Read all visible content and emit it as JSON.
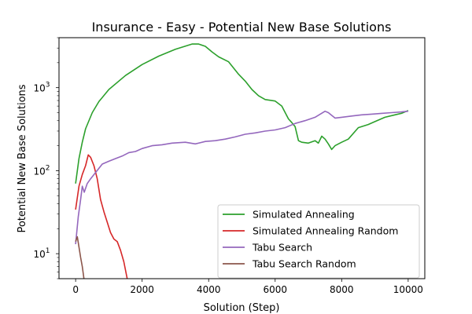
{
  "chart_data": {
    "type": "line",
    "title": "Insurance - Easy - Potential New Base Solutions",
    "xlabel": "Solution (Step)",
    "ylabel": "Potential New Base Solutions",
    "y_scale": "log",
    "xlim": [
      -500,
      10500
    ],
    "ylim": [
      5,
      4000
    ],
    "x_ticks": [
      0,
      2000,
      4000,
      6000,
      8000,
      10000
    ],
    "x_tick_labels": [
      "0",
      "2000",
      "4000",
      "6000",
      "8000",
      "10000"
    ],
    "y_ticks": [
      10,
      100,
      1000
    ],
    "y_tick_labels": [
      {
        "base": "10",
        "exp": "1"
      },
      {
        "base": "10",
        "exp": "2"
      },
      {
        "base": "10",
        "exp": "3"
      }
    ],
    "legend_position": "lower-right",
    "grid": false,
    "series": [
      {
        "name": "Simulated Annealing",
        "color": "#2ca02c",
        "points": [
          [
            0,
            70
          ],
          [
            100,
            140
          ],
          [
            200,
            220
          ],
          [
            300,
            320
          ],
          [
            500,
            500
          ],
          [
            700,
            680
          ],
          [
            1000,
            950
          ],
          [
            1500,
            1400
          ],
          [
            2000,
            1900
          ],
          [
            2500,
            2400
          ],
          [
            3000,
            2900
          ],
          [
            3500,
            3350
          ],
          [
            3700,
            3350
          ],
          [
            3900,
            3150
          ],
          [
            4100,
            2700
          ],
          [
            4300,
            2350
          ],
          [
            4600,
            2050
          ],
          [
            4900,
            1450
          ],
          [
            5100,
            1200
          ],
          [
            5300,
            950
          ],
          [
            5500,
            800
          ],
          [
            5700,
            720
          ],
          [
            6000,
            690
          ],
          [
            6200,
            600
          ],
          [
            6400,
            420
          ],
          [
            6500,
            380
          ],
          [
            6600,
            340
          ],
          [
            6700,
            230
          ],
          [
            6800,
            220
          ],
          [
            7000,
            215
          ],
          [
            7200,
            230
          ],
          [
            7300,
            215
          ],
          [
            7400,
            260
          ],
          [
            7500,
            240
          ],
          [
            7600,
            210
          ],
          [
            7700,
            180
          ],
          [
            7800,
            200
          ],
          [
            8000,
            220
          ],
          [
            8200,
            240
          ],
          [
            8500,
            330
          ],
          [
            8800,
            360
          ],
          [
            9000,
            390
          ],
          [
            9300,
            440
          ],
          [
            9600,
            470
          ],
          [
            9800,
            490
          ],
          [
            10000,
            530
          ]
        ]
      },
      {
        "name": "Simulated Annealing Random",
        "color": "#d62728",
        "points": [
          [
            0,
            34
          ],
          [
            100,
            65
          ],
          [
            200,
            90
          ],
          [
            300,
            115
          ],
          [
            380,
            155
          ],
          [
            450,
            145
          ],
          [
            550,
            115
          ],
          [
            650,
            80
          ],
          [
            750,
            45
          ],
          [
            850,
            32
          ],
          [
            950,
            24
          ],
          [
            1050,
            18
          ],
          [
            1150,
            15
          ],
          [
            1250,
            14
          ],
          [
            1350,
            11
          ],
          [
            1450,
            8
          ],
          [
            1550,
            5
          ]
        ]
      },
      {
        "name": "Tabu Search",
        "color": "#9467bd",
        "points": [
          [
            0,
            13
          ],
          [
            80,
            28
          ],
          [
            150,
            45
          ],
          [
            200,
            65
          ],
          [
            260,
            55
          ],
          [
            350,
            70
          ],
          [
            450,
            80
          ],
          [
            600,
            95
          ],
          [
            800,
            120
          ],
          [
            1000,
            130
          ],
          [
            1200,
            140
          ],
          [
            1400,
            150
          ],
          [
            1600,
            165
          ],
          [
            1800,
            170
          ],
          [
            2000,
            185
          ],
          [
            2300,
            200
          ],
          [
            2600,
            205
          ],
          [
            2900,
            215
          ],
          [
            3300,
            220
          ],
          [
            3600,
            210
          ],
          [
            3900,
            225
          ],
          [
            4200,
            230
          ],
          [
            4500,
            240
          ],
          [
            4800,
            255
          ],
          [
            5100,
            275
          ],
          [
            5400,
            285
          ],
          [
            5700,
            300
          ],
          [
            6000,
            310
          ],
          [
            6300,
            330
          ],
          [
            6600,
            370
          ],
          [
            6900,
            400
          ],
          [
            7200,
            440
          ],
          [
            7500,
            520
          ],
          [
            7600,
            500
          ],
          [
            7800,
            430
          ],
          [
            8000,
            440
          ],
          [
            8300,
            455
          ],
          [
            8600,
            470
          ],
          [
            8900,
            480
          ],
          [
            9200,
            490
          ],
          [
            9500,
            500
          ],
          [
            9800,
            510
          ],
          [
            10000,
            520
          ]
        ]
      },
      {
        "name": "Tabu Search Random",
        "color": "#8c564b",
        "points": [
          [
            0,
            14
          ],
          [
            50,
            16
          ],
          [
            100,
            12
          ],
          [
            150,
            9
          ],
          [
            200,
            7
          ],
          [
            250,
            5
          ]
        ]
      }
    ]
  }
}
